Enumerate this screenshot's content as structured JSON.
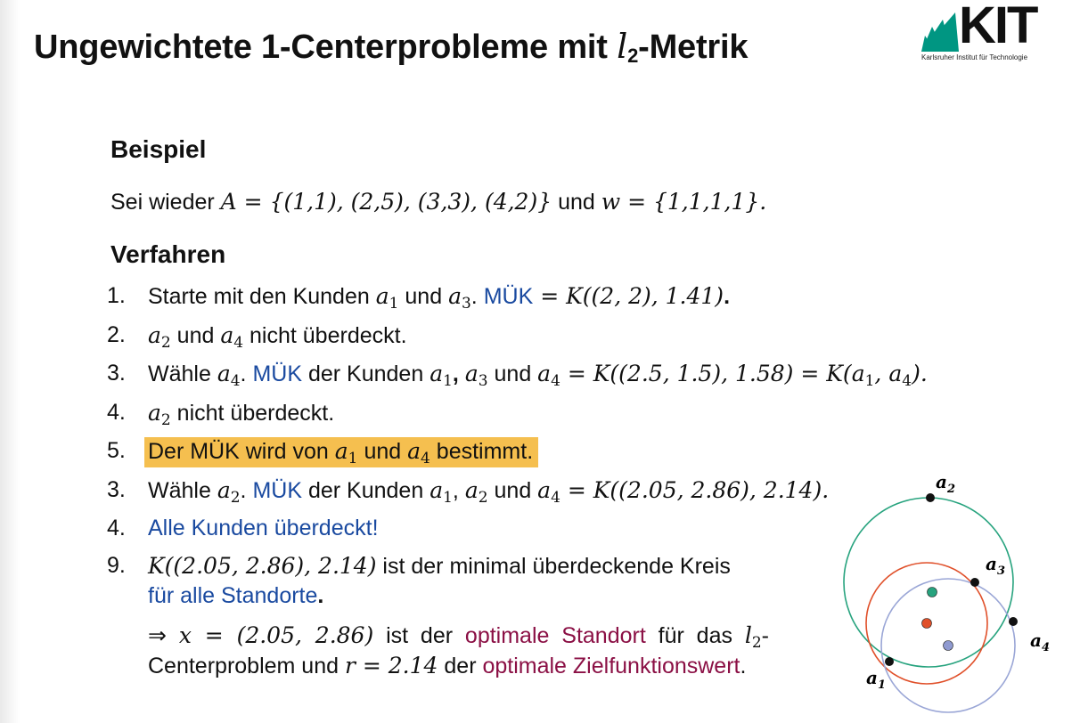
{
  "title": {
    "prefix": "Ungewichtete 1-Centerprobleme mit ",
    "l": "l",
    "sub": "2",
    "suffix": "-Metrik"
  },
  "logo": {
    "word": "KIT",
    "subtitle": "Karlsruher Institut für Technologie"
  },
  "example": {
    "heading": "Beispiel",
    "line_pre": "Sei wieder ",
    "set_A": "A = {(1,1), (2,5), (3,3), (4,2)}",
    "line_mid": " und ",
    "set_w": "w = {1,1,1,1}."
  },
  "procedure": {
    "heading": "Verfahren",
    "steps": [
      {
        "num": "1.",
        "t1": "Starte mit den Kunden ",
        "t2": " und ",
        "t3": ". ",
        "blue": "MÜK",
        "math": " = K((2, 2), 1.41)",
        "dot": "."
      },
      {
        "num": "2.",
        "t1": " und ",
        "t2": " nicht überdeckt."
      },
      {
        "num": "3.",
        "t1": "Wähle ",
        "t2": ". ",
        "blue": "MÜK",
        "t3": " der Kunden ",
        "t4": ", ",
        "t5": " und ",
        "math": " = K((2.5, 1.5), 1.58) = K(",
        "math2": ", ",
        "math3": ")."
      },
      {
        "num": "4.",
        "t1": " nicht überdeckt."
      },
      {
        "num": "5.",
        "t1": "Der MÜK wird von ",
        "t2": " und ",
        "t3": " bestimmt."
      },
      {
        "num": "3.",
        "t1": "Wähle ",
        "t2": ". ",
        "blue": "MÜK",
        "t3": " der Kunden ",
        "t4": ", ",
        "t5": " und ",
        "math": " = K((2.05, 2.86), 2.14)."
      },
      {
        "num": "4.",
        "blue": "Alle Kunden überdeckt!"
      },
      {
        "num": "9.",
        "math": "K((2.05, 2.86), 2.14)",
        "t1": " ist der minimal überdeckende Kreis",
        "blue": "für alle Standorte",
        "dot": "."
      }
    ],
    "conclusion": {
      "arrow": "⇒ ",
      "x": "x = (2.05, 2.86)",
      "t1": " ist der ",
      "p1": "optimale Standort",
      "t2": " für das ",
      "l": "l",
      "lsub": "2",
      "t3": "-Centerproblem und ",
      "r": "r = 2.14",
      "t4": " der ",
      "p2": "optimale Zielfunktionswert",
      "dot": "."
    }
  },
  "vars": {
    "a": "a",
    "s1": "1",
    "s2": "2",
    "s3": "3",
    "s4": "4"
  },
  "figure": {
    "labels": {
      "a1": "a",
      "a2": "a",
      "a3": "a",
      "a4": "a"
    },
    "colors": {
      "green_circle": "#27a37e",
      "red_circle": "#e0502a",
      "blue_circle": "#9aa6d6",
      "point": "#111111"
    }
  }
}
